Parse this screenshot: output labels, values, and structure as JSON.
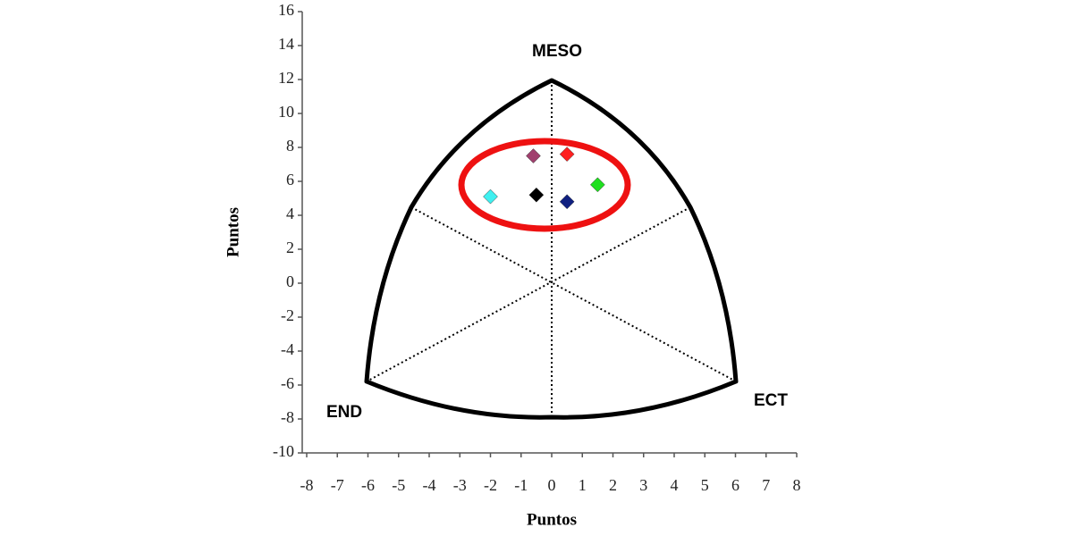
{
  "chart_data": {
    "type": "scatter",
    "xlabel": "Puntos",
    "ylabel": "Puntos",
    "annotations": [
      "MESO",
      "END",
      "ECT"
    ],
    "xlim": [
      -8,
      8
    ],
    "xticks": [
      -8,
      -7,
      -6,
      -5,
      -4,
      -3,
      -2,
      -1,
      0,
      1,
      2,
      3,
      4,
      5,
      6,
      7,
      8
    ],
    "ylim": [
      -10,
      16
    ],
    "yticks": [
      -10,
      -8,
      -6,
      -4,
      -2,
      0,
      2,
      4,
      6,
      8,
      10,
      12,
      14,
      16
    ],
    "series": [
      {
        "color": "#a0406e",
        "x": [
          -0.6
        ],
        "values": [
          7.5
        ]
      },
      {
        "color": "#ff2020",
        "x": [
          0.5
        ],
        "values": [
          7.6
        ]
      },
      {
        "color": "#40f0f0",
        "x": [
          -2.0
        ],
        "values": [
          5.1
        ]
      },
      {
        "color": "#000000",
        "x": [
          -0.5
        ],
        "values": [
          5.2
        ]
      },
      {
        "color": "#102080",
        "x": [
          0.5
        ],
        "values": [
          4.8
        ]
      },
      {
        "color": "#20e020",
        "x": [
          1.5
        ],
        "values": [
          5.8
        ]
      }
    ]
  }
}
